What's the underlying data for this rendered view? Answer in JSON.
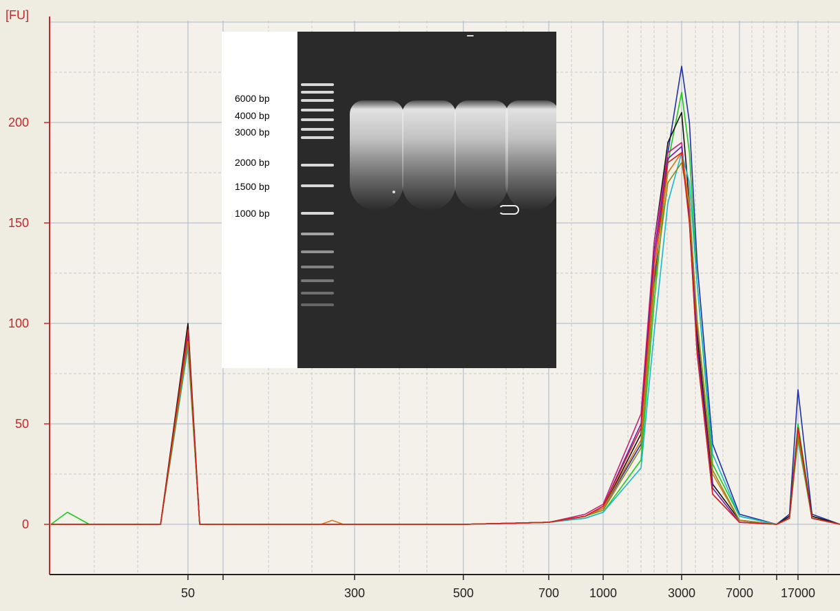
{
  "chart_data": {
    "type": "line",
    "ylabel": "[FU]",
    "y_ticks": [
      0,
      50,
      100,
      150,
      200
    ],
    "ylim": [
      -25,
      250
    ],
    "x_tick_labels": [
      "50",
      "300",
      "500",
      "700",
      "1000",
      "3000",
      "7000",
      "17000"
    ],
    "x_scale": "custom-nonlinear (bp)",
    "grid": true,
    "series": [
      {
        "color": "#1f2fa8",
        "points": [
          [
            25,
            0
          ],
          [
            35,
            0
          ],
          [
            45,
            0
          ],
          [
            50,
            93
          ],
          [
            55,
            0
          ],
          [
            100,
            0
          ],
          [
            300,
            0
          ],
          [
            500,
            0
          ],
          [
            700,
            1
          ],
          [
            900,
            4
          ],
          [
            1000,
            8
          ],
          [
            1500,
            40
          ],
          [
            2000,
            120
          ],
          [
            2500,
            185
          ],
          [
            3000,
            228
          ],
          [
            3500,
            200
          ],
          [
            4000,
            130
          ],
          [
            5000,
            40
          ],
          [
            7000,
            5
          ],
          [
            12000,
            0
          ],
          [
            15000,
            5
          ],
          [
            17000,
            67
          ],
          [
            19000,
            5
          ],
          [
            23000,
            0
          ]
        ]
      },
      {
        "color": "#1ec81e",
        "points": [
          [
            25,
            0
          ],
          [
            28,
            6
          ],
          [
            32,
            0
          ],
          [
            45,
            0
          ],
          [
            50,
            90
          ],
          [
            55,
            0
          ],
          [
            100,
            0
          ],
          [
            300,
            0
          ],
          [
            500,
            0
          ],
          [
            700,
            1
          ],
          [
            900,
            3
          ],
          [
            1000,
            6
          ],
          [
            1500,
            32
          ],
          [
            2000,
            110
          ],
          [
            2500,
            180
          ],
          [
            3000,
            215
          ],
          [
            3500,
            185
          ],
          [
            4000,
            120
          ],
          [
            5000,
            30
          ],
          [
            7000,
            4
          ],
          [
            12000,
            0
          ],
          [
            15000,
            4
          ],
          [
            17000,
            50
          ],
          [
            19000,
            4
          ],
          [
            23000,
            0
          ]
        ]
      },
      {
        "color": "#111111",
        "points": [
          [
            25,
            0
          ],
          [
            45,
            0
          ],
          [
            50,
            100
          ],
          [
            55,
            0
          ],
          [
            100,
            0
          ],
          [
            300,
            0
          ],
          [
            500,
            0
          ],
          [
            700,
            1
          ],
          [
            900,
            4
          ],
          [
            1000,
            8
          ],
          [
            1500,
            45
          ],
          [
            2000,
            140
          ],
          [
            2500,
            190
          ],
          [
            3000,
            205
          ],
          [
            3500,
            160
          ],
          [
            4000,
            95
          ],
          [
            5000,
            20
          ],
          [
            7000,
            2
          ],
          [
            12000,
            0
          ],
          [
            15000,
            4
          ],
          [
            17000,
            48
          ],
          [
            19000,
            4
          ],
          [
            23000,
            0
          ]
        ]
      },
      {
        "color": "#c81e78",
        "points": [
          [
            25,
            0
          ],
          [
            45,
            0
          ],
          [
            50,
            94
          ],
          [
            55,
            0
          ],
          [
            100,
            0
          ],
          [
            300,
            0
          ],
          [
            500,
            0
          ],
          [
            700,
            1
          ],
          [
            900,
            5
          ],
          [
            1000,
            10
          ],
          [
            1500,
            55
          ],
          [
            2000,
            140
          ],
          [
            2500,
            185
          ],
          [
            3000,
            190
          ],
          [
            3500,
            150
          ],
          [
            4000,
            85
          ],
          [
            5000,
            15
          ],
          [
            7000,
            1
          ],
          [
            12000,
            0
          ],
          [
            15000,
            3
          ],
          [
            17000,
            45
          ],
          [
            19000,
            3
          ],
          [
            23000,
            0
          ]
        ]
      },
      {
        "color": "#6a1fa8",
        "points": [
          [
            25,
            0
          ],
          [
            45,
            0
          ],
          [
            50,
            92
          ],
          [
            55,
            0
          ],
          [
            100,
            0
          ],
          [
            300,
            0
          ],
          [
            500,
            0
          ],
          [
            700,
            1
          ],
          [
            900,
            4
          ],
          [
            1000,
            9
          ],
          [
            1500,
            50
          ],
          [
            2000,
            135
          ],
          [
            2500,
            182
          ],
          [
            3000,
            188
          ],
          [
            3500,
            155
          ],
          [
            4000,
            90
          ],
          [
            5000,
            18
          ],
          [
            7000,
            1
          ],
          [
            12000,
            0
          ],
          [
            15000,
            3
          ],
          [
            17000,
            44
          ],
          [
            19000,
            3
          ],
          [
            23000,
            0
          ]
        ]
      },
      {
        "color": "#18b8c8",
        "points": [
          [
            25,
            0
          ],
          [
            45,
            0
          ],
          [
            50,
            88
          ],
          [
            55,
            0
          ],
          [
            100,
            0
          ],
          [
            300,
            0
          ],
          [
            500,
            0
          ],
          [
            700,
            1
          ],
          [
            900,
            3
          ],
          [
            1000,
            6
          ],
          [
            1500,
            28
          ],
          [
            2000,
            95
          ],
          [
            2500,
            160
          ],
          [
            3000,
            185
          ],
          [
            3500,
            170
          ],
          [
            4000,
            120
          ],
          [
            5000,
            35
          ],
          [
            7000,
            4
          ],
          [
            12000,
            0
          ],
          [
            15000,
            3
          ],
          [
            17000,
            42
          ],
          [
            19000,
            3
          ],
          [
            23000,
            0
          ]
        ]
      },
      {
        "color": "#d87818",
        "points": [
          [
            25,
            0
          ],
          [
            45,
            0
          ],
          [
            50,
            91
          ],
          [
            55,
            0
          ],
          [
            100,
            0
          ],
          [
            240,
            0
          ],
          [
            260,
            2
          ],
          [
            280,
            0
          ],
          [
            300,
            0
          ],
          [
            500,
            0
          ],
          [
            700,
            1
          ],
          [
            900,
            4
          ],
          [
            1000,
            8
          ],
          [
            1500,
            42
          ],
          [
            2000,
            125
          ],
          [
            2500,
            175
          ],
          [
            3000,
            185
          ],
          [
            3500,
            160
          ],
          [
            4000,
            100
          ],
          [
            5000,
            25
          ],
          [
            7000,
            2
          ],
          [
            12000,
            0
          ],
          [
            15000,
            3
          ],
          [
            17000,
            46
          ],
          [
            19000,
            3
          ],
          [
            23000,
            0
          ]
        ]
      },
      {
        "color": "#8a8a18",
        "points": [
          [
            25,
            0
          ],
          [
            45,
            0
          ],
          [
            50,
            90
          ],
          [
            55,
            0
          ],
          [
            100,
            0
          ],
          [
            300,
            0
          ],
          [
            500,
            0
          ],
          [
            700,
            1
          ],
          [
            900,
            4
          ],
          [
            1000,
            7
          ],
          [
            1500,
            38
          ],
          [
            2000,
            118
          ],
          [
            2500,
            170
          ],
          [
            3000,
            180
          ],
          [
            3500,
            158
          ],
          [
            4000,
            102
          ],
          [
            5000,
            27
          ],
          [
            7000,
            2
          ],
          [
            12000,
            0
          ],
          [
            15000,
            3
          ],
          [
            17000,
            43
          ],
          [
            19000,
            3
          ],
          [
            23000,
            0
          ]
        ]
      },
      {
        "color": "#d81e1e",
        "points": [
          [
            25,
            0
          ],
          [
            45,
            0
          ],
          [
            50,
            97
          ],
          [
            55,
            0
          ],
          [
            100,
            0
          ],
          [
            300,
            0
          ],
          [
            500,
            0
          ],
          [
            700,
            1
          ],
          [
            900,
            4
          ],
          [
            1000,
            9
          ],
          [
            1500,
            48
          ],
          [
            2000,
            130
          ],
          [
            2500,
            180
          ],
          [
            3000,
            185
          ],
          [
            3500,
            150
          ],
          [
            4000,
            85
          ],
          [
            5000,
            15
          ],
          [
            7000,
            1
          ],
          [
            12000,
            0
          ],
          [
            15000,
            3
          ],
          [
            17000,
            48
          ],
          [
            19000,
            3
          ],
          [
            23000,
            0
          ]
        ]
      }
    ]
  },
  "inset": {
    "ladder_labels": [
      "6000 bp",
      "4000 bp",
      "3000 bp",
      "2000 bp",
      "1500 bp",
      "1000 bp"
    ]
  }
}
